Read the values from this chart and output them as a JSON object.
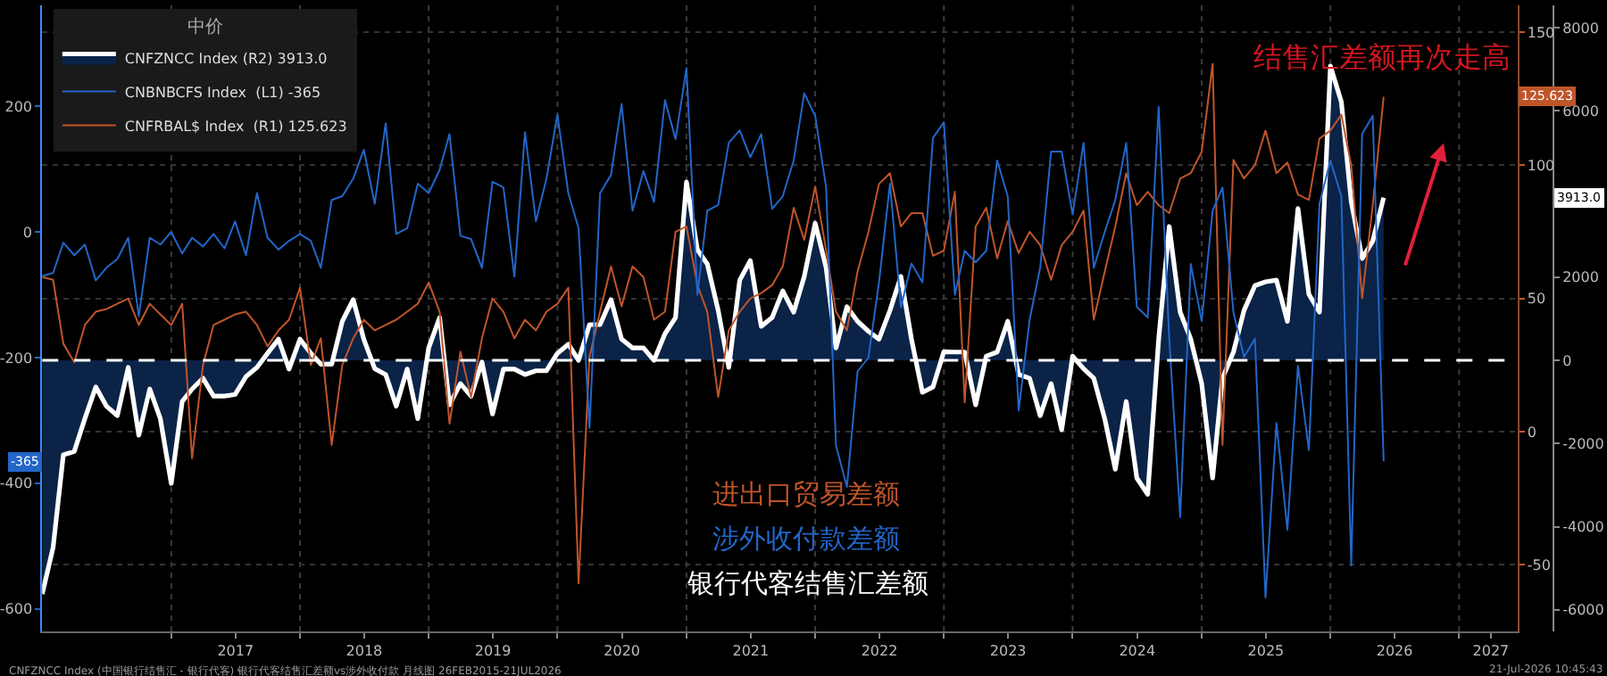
{
  "chart_data": {
    "type": "line",
    "title": "结售汇差额再次走高",
    "legend_title": "中价",
    "x": [
      "2016-01",
      "2016-02",
      "2016-03",
      "2016-04",
      "2016-05",
      "2016-06",
      "2016-07",
      "2016-08",
      "2016-09",
      "2016-10",
      "2016-11",
      "2016-12",
      "2017-01",
      "2017-02",
      "2017-03",
      "2017-04",
      "2017-05",
      "2017-06",
      "2017-07",
      "2017-08",
      "2017-09",
      "2017-10",
      "2017-11",
      "2017-12",
      "2018-01",
      "2018-02",
      "2018-03",
      "2018-04",
      "2018-05",
      "2018-06",
      "2018-07",
      "2018-08",
      "2018-09",
      "2018-10",
      "2018-11",
      "2018-12",
      "2019-01",
      "2019-02",
      "2019-03",
      "2019-04",
      "2019-05",
      "2019-06",
      "2019-07",
      "2019-08",
      "2019-09",
      "2019-10",
      "2019-11",
      "2019-12",
      "2020-01",
      "2020-02",
      "2020-03",
      "2020-04",
      "2020-05",
      "2020-06",
      "2020-07",
      "2020-08",
      "2020-09",
      "2020-10",
      "2020-11",
      "2020-12",
      "2021-01",
      "2021-02",
      "2021-03",
      "2021-04",
      "2021-05",
      "2021-06",
      "2021-07",
      "2021-08",
      "2021-09",
      "2021-10",
      "2021-11",
      "2021-12",
      "2022-01",
      "2022-02",
      "2022-03",
      "2022-04",
      "2022-05",
      "2022-06",
      "2022-07",
      "2022-08",
      "2022-09",
      "2022-10",
      "2022-11",
      "2022-12",
      "2023-01",
      "2023-02",
      "2023-03",
      "2023-04",
      "2023-05",
      "2023-06",
      "2023-07",
      "2023-08",
      "2023-09",
      "2023-10",
      "2023-11",
      "2023-12",
      "2024-01",
      "2024-02",
      "2024-03",
      "2024-04",
      "2024-05",
      "2024-06",
      "2024-07",
      "2024-08",
      "2024-09",
      "2024-10",
      "2024-11",
      "2024-12",
      "2025-01",
      "2025-02",
      "2025-03",
      "2025-04",
      "2025-05",
      "2025-06",
      "2025-07",
      "2025-08",
      "2025-09",
      "2025-10",
      "2025-11",
      "2025-12",
      "2026-01",
      "2026-02",
      "2026-03",
      "2026-04",
      "2026-05",
      "2026-06"
    ],
    "series": [
      {
        "name": "CNFZNCC Index (R2) 3913.0",
        "type": "area",
        "axis": "y3",
        "color": "#ffffff",
        "values": [
          -5620,
          -4500,
          -2270,
          -2190,
          -1400,
          -640,
          -1100,
          -1330,
          -170,
          -1800,
          -690,
          -1400,
          -2960,
          -990,
          -690,
          -430,
          -860,
          -860,
          -820,
          -390,
          -170,
          170,
          510,
          -210,
          510,
          170,
          -90,
          -90,
          940,
          1460,
          510,
          -200,
          -340,
          -1100,
          -210,
          -1400,
          300,
          1030,
          -1070,
          -560,
          -860,
          -40,
          -1290,
          -210,
          -210,
          -340,
          -250,
          -250,
          170,
          390,
          0,
          860,
          860,
          1460,
          510,
          300,
          300,
          0,
          640,
          1030,
          4290,
          2660,
          2320,
          1200,
          -170,
          1930,
          2400,
          820,
          1030,
          1670,
          1160,
          2020,
          3300,
          2230,
          300,
          1290,
          940,
          700,
          510,
          1200,
          2020,
          510,
          -770,
          -640,
          210,
          200,
          200,
          -1070,
          100,
          200,
          940,
          -340,
          -430,
          -1330,
          -560,
          -1670,
          100,
          -200,
          -430,
          -1400,
          -2620,
          -990,
          -2830,
          -3220,
          510,
          3220,
          1160,
          510,
          -560,
          -2830,
          -430,
          200,
          1200,
          1800,
          1890,
          1930,
          940,
          3650,
          1590,
          1160,
          7080,
          6220,
          3820,
          2450,
          2870,
          3913
        ]
      },
      {
        "name": "CNBNBCFS Index  (L1) -365",
        "axis": "y",
        "color": "#2266c8",
        "values": [
          -70,
          -65,
          -17,
          -37,
          -20,
          -77,
          -57,
          -43,
          -9,
          -134,
          -9,
          -20,
          0,
          -34,
          -9,
          -23,
          -3,
          -26,
          17,
          -37,
          62,
          -9,
          -28,
          -14,
          -3,
          -14,
          -57,
          51,
          57,
          85,
          131,
          45,
          173,
          -3,
          6,
          77,
          62,
          99,
          156,
          -6,
          -11,
          -57,
          80,
          71,
          -71,
          159,
          17,
          85,
          187,
          62,
          6,
          -312,
          62,
          91,
          204,
          34,
          97,
          48,
          210,
          148,
          261,
          -100,
          34,
          43,
          142,
          162,
          119,
          156,
          37,
          57,
          114,
          221,
          185,
          71,
          -340,
          -406,
          -222,
          -200,
          -80,
          77,
          -120,
          -50,
          -80,
          150,
          175,
          -100,
          -30,
          -48,
          -30,
          114,
          57,
          -284,
          -140,
          -57,
          128,
          128,
          28,
          142,
          -57,
          0,
          51,
          142,
          -119,
          -136,
          199,
          -170,
          -454,
          -51,
          -142,
          34,
          71,
          -128,
          -199,
          -170,
          -582,
          -304,
          -474,
          -213,
          -347,
          45,
          114,
          57,
          -531,
          156,
          185,
          -365
        ]
      },
      {
        "name": "CNFRBAL$ Index  (R1) 125.623",
        "axis": "y2",
        "color": "#c0552a",
        "values": [
          58,
          57,
          33,
          26,
          40,
          45,
          46,
          48,
          50,
          40,
          48,
          44,
          40,
          48,
          -10,
          25,
          40,
          42,
          44,
          45,
          40,
          32,
          38,
          42,
          54,
          25,
          35,
          -5,
          25,
          35,
          42,
          38,
          40,
          42,
          45,
          48,
          56,
          45,
          3,
          30,
          13,
          35,
          50,
          45,
          35,
          42,
          38,
          45,
          48,
          54,
          -57,
          28,
          45,
          62,
          47,
          62,
          58,
          42,
          45,
          75,
          77,
          55,
          45,
          13,
          38,
          45,
          50,
          52,
          55,
          62,
          84,
          72,
          92,
          68,
          45,
          38,
          60,
          75,
          93,
          97,
          77,
          82,
          82,
          66,
          68,
          90,
          11,
          77,
          84,
          65,
          79,
          67,
          75,
          70,
          57,
          70,
          75,
          83,
          42,
          60,
          77,
          97,
          85,
          90,
          85,
          82,
          95,
          97,
          105,
          138,
          -5,
          102,
          95,
          100,
          113,
          97,
          101,
          89,
          87,
          110,
          113,
          119,
          100,
          50,
          85,
          125.623
        ]
      }
    ],
    "xlim": [
      "2016-01-01",
      "2027-06-15"
    ],
    "xticks": [
      {
        "value": "2017-01-01",
        "label": null
      },
      {
        "value": "2017-07-02",
        "label": "2017"
      },
      {
        "value": "2018-01-01",
        "label": null
      },
      {
        "value": "2018-07-02",
        "label": "2018"
      },
      {
        "value": "2019-01-01",
        "label": null
      },
      {
        "value": "2019-07-02",
        "label": "2019"
      },
      {
        "value": "2020-01-01",
        "label": null
      },
      {
        "value": "2020-07-02",
        "label": "2020"
      },
      {
        "value": "2021-01-01",
        "label": null
      },
      {
        "value": "2021-07-02",
        "label": "2021"
      },
      {
        "value": "2022-01-01",
        "label": null
      },
      {
        "value": "2022-07-02",
        "label": "2022"
      },
      {
        "value": "2023-01-01",
        "label": null
      },
      {
        "value": "2023-07-02",
        "label": "2023"
      },
      {
        "value": "2024-01-01",
        "label": null
      },
      {
        "value": "2024-07-02",
        "label": "2024"
      },
      {
        "value": "2025-01-01",
        "label": null
      },
      {
        "value": "2025-07-02",
        "label": "2025"
      },
      {
        "value": "2026-01-01",
        "label": null
      },
      {
        "value": "2026-07-02",
        "label": "2026"
      },
      {
        "value": "2027-01-01",
        "label": null
      },
      {
        "value": "2027-04-01",
        "label": "2027"
      }
    ],
    "ylim": [
      -636,
      361
    ],
    "yticks": [
      -600,
      -400,
      -200,
      0,
      200
    ],
    "y2lim": [
      -75,
      160
    ],
    "y2ticks": [
      -50,
      0,
      50,
      100,
      150
    ],
    "y3lim": [
      -6520,
      8540
    ],
    "y3ticks": [
      -6000,
      -4000,
      -2000,
      0,
      2000,
      6000,
      8000
    ],
    "ref_lines": [
      {
        "axis": "y3",
        "value": 0,
        "color": "#ffffff",
        "line_style": "dashed"
      }
    ],
    "grid": true,
    "legend": "top left",
    "annotations": [
      "进出口贸易差额",
      "涉外收付款差额",
      "银行代客结售汇差额",
      "CNFZNCC Index (中国银行结售汇 - 银行代客) 银行代客结售汇差额vs涉外收付款 月线图 26FEB2015-21JUL2026",
      "21-Jul-2026 10:45:43",
      "3913.0",
      "-365",
      "125.623"
    ]
  }
}
